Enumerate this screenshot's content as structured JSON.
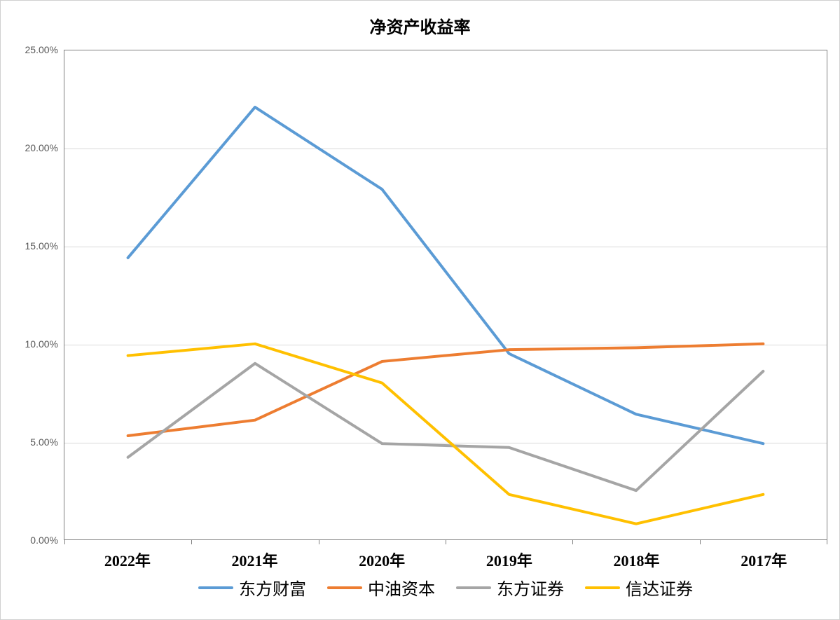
{
  "chart": {
    "type": "line",
    "title": "净资产收益率",
    "title_fontsize": 24,
    "background_color": "#ffffff",
    "border_color": "#d0d0d0",
    "plot_border_color": "#808080",
    "grid_color": "#d9d9d9",
    "categories": [
      "2022年",
      "2021年",
      "2020年",
      "2019年",
      "2018年",
      "2017年"
    ],
    "x_label_fontsize": 22,
    "y_label_fontsize": 14,
    "y_label_color": "#595959",
    "ylim": [
      0,
      25
    ],
    "ytick_step": 5,
    "y_format": "percent_2dp",
    "y_ticks": [
      "0.00%",
      "5.00%",
      "10.00%",
      "15.00%",
      "20.00%",
      "25.00%"
    ],
    "line_width": 4,
    "legend_fontsize": 24,
    "legend_position": "bottom",
    "series": [
      {
        "name": "东方财富",
        "color": "#5b9bd5",
        "values": [
          14.4,
          22.1,
          17.9,
          9.5,
          6.4,
          4.9
        ]
      },
      {
        "name": "中油资本",
        "color": "#ed7d31",
        "values": [
          5.3,
          6.1,
          9.1,
          9.7,
          9.8,
          10.0
        ]
      },
      {
        "name": "东方证券",
        "color": "#a5a5a5",
        "values": [
          4.2,
          9.0,
          4.9,
          4.7,
          2.5,
          8.6
        ]
      },
      {
        "name": "信达证券",
        "color": "#ffc000",
        "values": [
          9.4,
          10.0,
          8.0,
          2.3,
          0.8,
          2.3
        ]
      }
    ]
  }
}
